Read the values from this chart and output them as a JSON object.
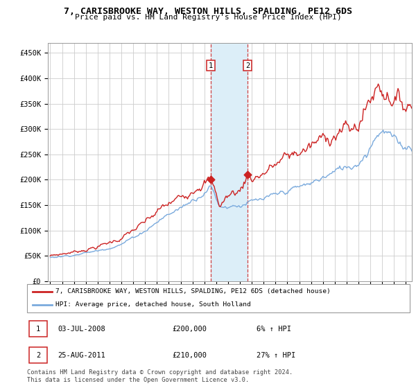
{
  "title": "7, CARISBROOKE WAY, WESTON HILLS, SPALDING, PE12 6DS",
  "subtitle": "Price paid vs. HM Land Registry's House Price Index (HPI)",
  "xlim_start": 1995.0,
  "xlim_end": 2025.5,
  "ylim": [
    0,
    470000
  ],
  "yticks": [
    0,
    50000,
    100000,
    150000,
    200000,
    250000,
    300000,
    350000,
    400000,
    450000
  ],
  "ytick_labels": [
    "£0",
    "£50K",
    "£100K",
    "£150K",
    "£200K",
    "£250K",
    "£300K",
    "£350K",
    "£400K",
    "£450K"
  ],
  "sale1_date": 2008.54,
  "sale1_price": 200000,
  "sale2_date": 2011.65,
  "sale2_price": 210000,
  "line1_color": "#cc2222",
  "line2_color": "#7aaadd",
  "highlight_color": "#dceef8",
  "transaction1": {
    "label": "1",
    "date": "03-JUL-2008",
    "price": "£200,000",
    "hpi": "6% ↑ HPI"
  },
  "transaction2": {
    "label": "2",
    "date": "25-AUG-2011",
    "price": "£210,000",
    "hpi": "27% ↑ HPI"
  },
  "legend1": "7, CARISBROOKE WAY, WESTON HILLS, SPALDING, PE12 6DS (detached house)",
  "legend2": "HPI: Average price, detached house, South Holland",
  "footnote": "Contains HM Land Registry data © Crown copyright and database right 2024.\nThis data is licensed under the Open Government Licence v3.0.",
  "grid_color": "#cccccc"
}
